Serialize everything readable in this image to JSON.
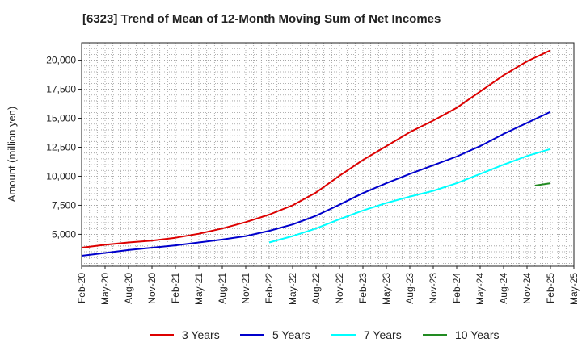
{
  "chart_data": {
    "type": "line",
    "title": "[6323]  Trend of Mean of 12-Month Moving Sum of Net Incomes",
    "xlabel": "",
    "ylabel": "Amount (million yen)",
    "ylim": [
      2250,
      21500
    ],
    "y_ticks": [
      5000,
      7500,
      10000,
      12500,
      15000,
      17500,
      20000
    ],
    "y_tick_labels": [
      "5,000",
      "7,500",
      "10,000",
      "12,500",
      "15,000",
      "17,500",
      "20,000"
    ],
    "x_tick_labels": [
      "Feb-20",
      "May-20",
      "Aug-20",
      "Nov-20",
      "Feb-21",
      "May-21",
      "Aug-21",
      "Nov-21",
      "Feb-22",
      "May-22",
      "Aug-22",
      "Nov-22",
      "Feb-23",
      "May-23",
      "Aug-23",
      "Nov-23",
      "Feb-24",
      "May-24",
      "Aug-24",
      "Nov-24",
      "Feb-25",
      "May-25"
    ],
    "grid": true,
    "legend_position": "bottom",
    "series": [
      {
        "name": "3 Years",
        "color": "#dd0000",
        "x": [
          "Feb-20",
          "May-20",
          "Aug-20",
          "Nov-20",
          "Feb-21",
          "May-21",
          "Aug-21",
          "Nov-21",
          "Feb-22",
          "May-22",
          "Aug-22",
          "Nov-22",
          "Feb-23",
          "May-23",
          "Aug-23",
          "Nov-23",
          "Feb-24",
          "May-24",
          "Aug-24",
          "Nov-24",
          "Feb-25"
        ],
        "values": [
          3850,
          4100,
          4300,
          4450,
          4700,
          5050,
          5500,
          6050,
          6700,
          7500,
          8600,
          10050,
          11400,
          12600,
          13800,
          14800,
          15900,
          17300,
          18700,
          19900,
          20850
        ]
      },
      {
        "name": "5 Years",
        "color": "#0000cc",
        "x": [
          "Feb-20",
          "May-20",
          "Aug-20",
          "Nov-20",
          "Feb-21",
          "May-21",
          "Aug-21",
          "Nov-21",
          "Feb-22",
          "May-22",
          "Aug-22",
          "Nov-22",
          "Feb-23",
          "May-23",
          "Aug-23",
          "Nov-23",
          "Feb-24",
          "May-24",
          "Aug-24",
          "Nov-24",
          "Feb-25"
        ],
        "values": [
          3150,
          3400,
          3650,
          3850,
          4050,
          4300,
          4550,
          4850,
          5300,
          5850,
          6600,
          7550,
          8550,
          9400,
          10200,
          10950,
          11700,
          12600,
          13650,
          14600,
          15550
        ]
      },
      {
        "name": "7 Years",
        "color": "#00ffff",
        "x": [
          "Feb-22",
          "May-22",
          "Aug-22",
          "Nov-22",
          "Feb-23",
          "May-23",
          "Aug-23",
          "Nov-23",
          "Feb-24",
          "May-24",
          "Aug-24",
          "Nov-24",
          "Feb-25"
        ],
        "values": [
          4300,
          4850,
          5500,
          6300,
          7050,
          7700,
          8250,
          8750,
          9400,
          10200,
          11000,
          11750,
          12350
        ]
      },
      {
        "name": "10 Years",
        "color": "#228b22",
        "x": [
          "Dec-24",
          "Feb-25"
        ],
        "values": [
          9200,
          9400
        ]
      }
    ]
  }
}
